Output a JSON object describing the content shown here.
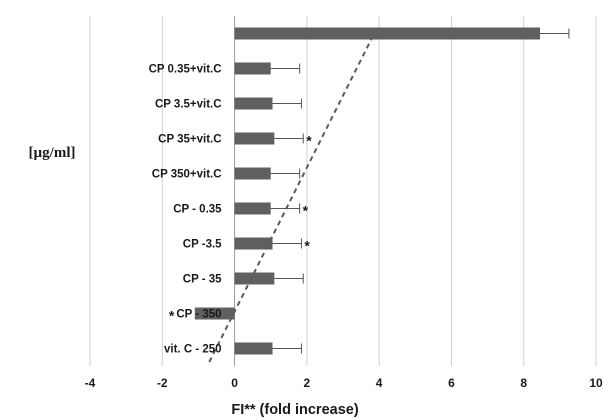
{
  "chart_data": {
    "type": "bar",
    "orientation": "horizontal",
    "title": "",
    "xlabel": "FI** (fold increase)",
    "ylabel": "[µg/ml]",
    "xlim": [
      -4,
      10
    ],
    "xticks": [
      -4,
      -2,
      0,
      2,
      4,
      6,
      8,
      10
    ],
    "grid": "vertical",
    "bar_color": "#606060",
    "categories": [
      "",
      "CP 0.35+vit.C",
      "CP 3.5+vit.C",
      "CP 35+vit.C",
      "CP 350+vit.C",
      "CP - 0.35",
      "CP -3.5",
      "CP - 35",
      "CP - 350",
      "vit. C - 250"
    ],
    "values": [
      8.45,
      1.0,
      1.05,
      1.1,
      1.0,
      1.0,
      1.05,
      1.1,
      -1.1,
      1.05
    ],
    "errors": [
      0.8,
      0.8,
      0.8,
      0.8,
      0.8,
      0.8,
      0.8,
      0.8,
      0.0,
      0.8
    ],
    "significance": [
      "",
      "",
      "",
      "*",
      "",
      "*",
      "*",
      "",
      "*",
      ""
    ],
    "trendline": {
      "style": "dashed",
      "from": [
        -0.7,
        9
      ],
      "to": [
        3.8,
        0
      ]
    }
  }
}
